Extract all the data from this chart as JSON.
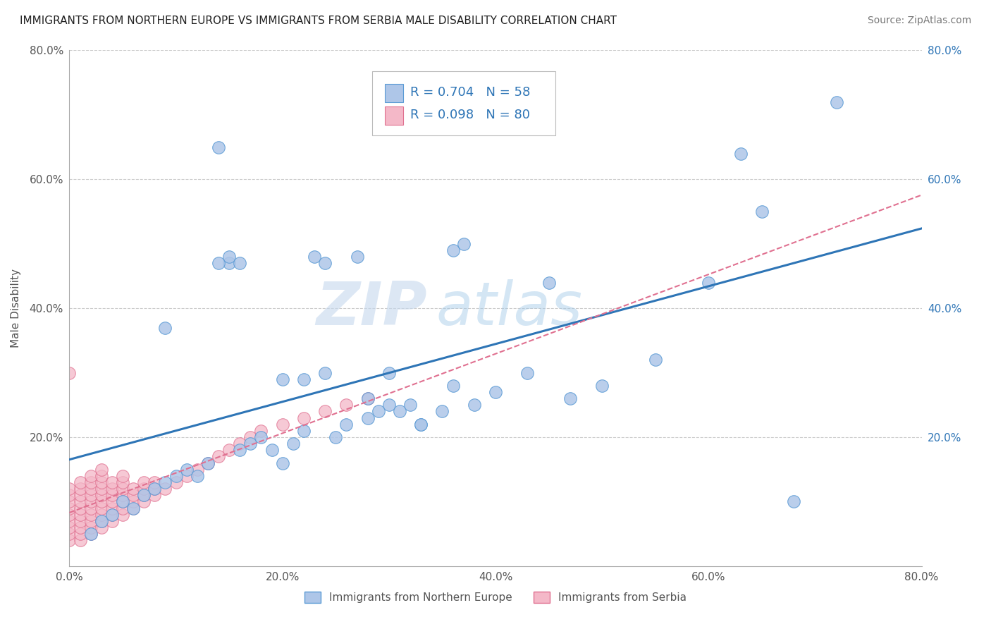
{
  "title": "IMMIGRANTS FROM NORTHERN EUROPE VS IMMIGRANTS FROM SERBIA MALE DISABILITY CORRELATION CHART",
  "source": "Source: ZipAtlas.com",
  "ylabel": "Male Disability",
  "xlim": [
    0.0,
    0.8
  ],
  "ylim": [
    0.0,
    0.8
  ],
  "xticks": [
    0.0,
    0.2,
    0.4,
    0.6,
    0.8
  ],
  "yticks": [
    0.0,
    0.2,
    0.4,
    0.6,
    0.8
  ],
  "xtick_labels": [
    "0.0%",
    "20.0%",
    "40.0%",
    "60.0%",
    "80.0%"
  ],
  "ytick_labels": [
    "",
    "20.0%",
    "40.0%",
    "60.0%",
    "80.0%"
  ],
  "right_ytick_labels": [
    "20.0%",
    "40.0%",
    "60.0%",
    "80.0%"
  ],
  "grid_color": "#cccccc",
  "background_color": "#ffffff",
  "watermark_zip": "ZIP",
  "watermark_atlas": "atlas",
  "series1_color": "#aec6e8",
  "series1_edge_color": "#5b9bd5",
  "series2_color": "#f4b8c8",
  "series2_edge_color": "#e07090",
  "series1_label": "Immigrants from Northern Europe",
  "series2_label": "Immigrants from Serbia",
  "series1_R": "0.704",
  "series1_N": "58",
  "series2_R": "0.098",
  "series2_N": "80",
  "trend1_color": "#2e75b6",
  "trend2_color": "#e07090",
  "legend_color": "#2e75b6",
  "series1_x": [
    0.02,
    0.03,
    0.04,
    0.05,
    0.06,
    0.07,
    0.08,
    0.09,
    0.1,
    0.11,
    0.12,
    0.13,
    0.14,
    0.15,
    0.16,
    0.17,
    0.18,
    0.19,
    0.2,
    0.21,
    0.22,
    0.23,
    0.24,
    0.25,
    0.26,
    0.27,
    0.28,
    0.29,
    0.3,
    0.31,
    0.32,
    0.33,
    0.35,
    0.36,
    0.37,
    0.38,
    0.4,
    0.43,
    0.45,
    0.47,
    0.5,
    0.55,
    0.6,
    0.65,
    0.68,
    0.72,
    0.09,
    0.14,
    0.15,
    0.16,
    0.2,
    0.22,
    0.24,
    0.28,
    0.3,
    0.33,
    0.36,
    0.63
  ],
  "series1_y": [
    0.05,
    0.07,
    0.08,
    0.1,
    0.09,
    0.11,
    0.12,
    0.13,
    0.14,
    0.15,
    0.14,
    0.16,
    0.65,
    0.47,
    0.18,
    0.19,
    0.2,
    0.18,
    0.16,
    0.19,
    0.21,
    0.48,
    0.47,
    0.2,
    0.22,
    0.48,
    0.23,
    0.24,
    0.25,
    0.24,
    0.25,
    0.22,
    0.24,
    0.49,
    0.5,
    0.25,
    0.27,
    0.3,
    0.44,
    0.26,
    0.28,
    0.32,
    0.44,
    0.55,
    0.1,
    0.72,
    0.37,
    0.47,
    0.48,
    0.47,
    0.29,
    0.29,
    0.3,
    0.26,
    0.3,
    0.22,
    0.28,
    0.64
  ],
  "series2_x": [
    0.0,
    0.0,
    0.0,
    0.0,
    0.0,
    0.0,
    0.0,
    0.0,
    0.0,
    0.0,
    0.01,
    0.01,
    0.01,
    0.01,
    0.01,
    0.01,
    0.01,
    0.01,
    0.01,
    0.01,
    0.02,
    0.02,
    0.02,
    0.02,
    0.02,
    0.02,
    0.02,
    0.02,
    0.02,
    0.02,
    0.03,
    0.03,
    0.03,
    0.03,
    0.03,
    0.03,
    0.03,
    0.03,
    0.03,
    0.03,
    0.04,
    0.04,
    0.04,
    0.04,
    0.04,
    0.04,
    0.04,
    0.05,
    0.05,
    0.05,
    0.05,
    0.05,
    0.05,
    0.05,
    0.06,
    0.06,
    0.06,
    0.06,
    0.07,
    0.07,
    0.07,
    0.07,
    0.08,
    0.08,
    0.08,
    0.09,
    0.1,
    0.11,
    0.12,
    0.13,
    0.14,
    0.15,
    0.16,
    0.17,
    0.18,
    0.2,
    0.22,
    0.24,
    0.26,
    0.28
  ],
  "series2_y": [
    0.04,
    0.05,
    0.06,
    0.07,
    0.08,
    0.09,
    0.1,
    0.11,
    0.12,
    0.3,
    0.04,
    0.05,
    0.06,
    0.07,
    0.08,
    0.09,
    0.1,
    0.11,
    0.12,
    0.13,
    0.05,
    0.06,
    0.07,
    0.08,
    0.09,
    0.1,
    0.11,
    0.12,
    0.13,
    0.14,
    0.06,
    0.07,
    0.08,
    0.09,
    0.1,
    0.11,
    0.12,
    0.13,
    0.14,
    0.15,
    0.07,
    0.08,
    0.09,
    0.1,
    0.11,
    0.12,
    0.13,
    0.08,
    0.09,
    0.1,
    0.11,
    0.12,
    0.13,
    0.14,
    0.09,
    0.1,
    0.11,
    0.12,
    0.1,
    0.11,
    0.12,
    0.13,
    0.11,
    0.12,
    0.13,
    0.12,
    0.13,
    0.14,
    0.15,
    0.16,
    0.17,
    0.18,
    0.19,
    0.2,
    0.21,
    0.22,
    0.23,
    0.24,
    0.25,
    0.26
  ]
}
